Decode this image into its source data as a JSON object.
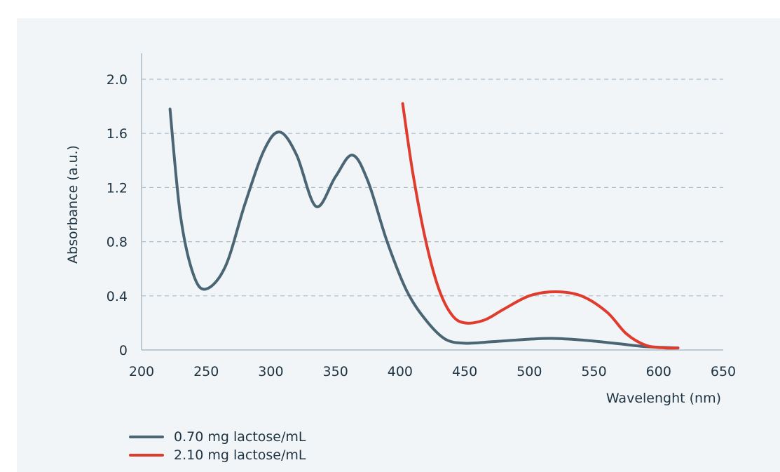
{
  "chart_data": {
    "type": "line",
    "title": "",
    "xlabel": "Wavelenght (nm)",
    "ylabel": "Absorbance (a.u.)",
    "xlim": [
      200,
      650
    ],
    "ylim": [
      0,
      2.0
    ],
    "x_ticks": [
      "200",
      "250",
      "300",
      "350",
      "400",
      "450",
      "500",
      "550",
      "600",
      "650"
    ],
    "y_ticks": [
      "0",
      "0.4",
      "0.8",
      "1.2",
      "1.6",
      "2.0"
    ],
    "grid": "horizontal dashed",
    "legend_position": "bottom-left",
    "series": [
      {
        "name": "0.70 mg lactose/mL",
        "color": "#4a6675",
        "points": [
          [
            222,
            1.78
          ],
          [
            230,
            1.0
          ],
          [
            240,
            0.56
          ],
          [
            250,
            0.45
          ],
          [
            265,
            0.62
          ],
          [
            280,
            1.08
          ],
          [
            295,
            1.48
          ],
          [
            307,
            1.61
          ],
          [
            320,
            1.44
          ],
          [
            335,
            1.06
          ],
          [
            350,
            1.28
          ],
          [
            363,
            1.44
          ],
          [
            375,
            1.25
          ],
          [
            390,
            0.8
          ],
          [
            405,
            0.44
          ],
          [
            420,
            0.22
          ],
          [
            435,
            0.08
          ],
          [
            450,
            0.05
          ],
          [
            470,
            0.06
          ],
          [
            500,
            0.08
          ],
          [
            520,
            0.085
          ],
          [
            545,
            0.07
          ],
          [
            570,
            0.045
          ],
          [
            590,
            0.025
          ],
          [
            615,
            0.015
          ]
        ]
      },
      {
        "name": "2.10 mg lactose/mL",
        "color": "#e03c2e",
        "points": [
          [
            402,
            1.82
          ],
          [
            410,
            1.3
          ],
          [
            420,
            0.8
          ],
          [
            430,
            0.45
          ],
          [
            440,
            0.26
          ],
          [
            450,
            0.2
          ],
          [
            465,
            0.22
          ],
          [
            480,
            0.3
          ],
          [
            500,
            0.4
          ],
          [
            520,
            0.43
          ],
          [
            540,
            0.4
          ],
          [
            560,
            0.28
          ],
          [
            575,
            0.12
          ],
          [
            590,
            0.035
          ],
          [
            605,
            0.015
          ],
          [
            615,
            0.015
          ]
        ]
      }
    ]
  }
}
